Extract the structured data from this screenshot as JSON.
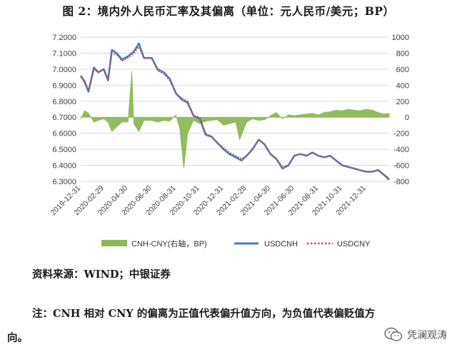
{
  "title": "图 2：境内外人民币汇率及其偏离（单位：元人民币/美元；BP）",
  "source": "资料来源：WIND；中银证券",
  "note": "注：CNH 相对 CNY 的偏离为正值代表偏升值方向，为负值代表偏贬值方",
  "note_tail": "向。",
  "watermark": "凭澜观涛",
  "colors": {
    "deviation": "#8DB955",
    "usdcnh": "#4A7EBB",
    "usdcny": "#C0504D"
  },
  "chart_data": {
    "type": "line",
    "left_axis": {
      "min": 6.3,
      "max": 7.2,
      "step": 0.1,
      "ticks": [
        "6.3000",
        "6.4000",
        "6.5000",
        "6.6000",
        "6.7000",
        "6.8000",
        "6.9000",
        "7.0000",
        "7.1000",
        "7.2000"
      ]
    },
    "right_axis": {
      "min": -800,
      "max": 1000,
      "step": 200,
      "ticks": [
        "-800",
        "-600",
        "-400",
        "-200",
        "0",
        "200",
        "400",
        "600",
        "800",
        "1000"
      ]
    },
    "x_ticks": [
      "2019-12-31",
      "2020-02-29",
      "2020-04-30",
      "2020-06-30",
      "2020-08-31",
      "2020-10-31",
      "2020-12-31",
      "2021-02-28",
      "2021-04-30",
      "2021-06-30",
      "2021-08-31",
      "2021-10-31",
      "2021-12-31"
    ],
    "x_range": [
      "2019-12-31",
      "2022-02-28"
    ],
    "usdcnh": [
      [
        "2019-12-31",
        6.96
      ],
      [
        "2020-01-10",
        6.92
      ],
      [
        "2020-01-20",
        6.86
      ],
      [
        "2020-02-03",
        7.01
      ],
      [
        "2020-02-14",
        6.98
      ],
      [
        "2020-02-28",
        7.0
      ],
      [
        "2020-03-10",
        6.93
      ],
      [
        "2020-03-20",
        7.12
      ],
      [
        "2020-04-01",
        7.1
      ],
      [
        "2020-04-15",
        7.06
      ],
      [
        "2020-04-30",
        7.08
      ],
      [
        "2020-05-15",
        7.11
      ],
      [
        "2020-05-28",
        7.16
      ],
      [
        "2020-06-10",
        7.07
      ],
      [
        "2020-06-30",
        7.07
      ],
      [
        "2020-07-15",
        7.0
      ],
      [
        "2020-07-31",
        6.98
      ],
      [
        "2020-08-15",
        6.94
      ],
      [
        "2020-08-31",
        6.85
      ],
      [
        "2020-09-15",
        6.81
      ],
      [
        "2020-09-30",
        6.79
      ],
      [
        "2020-10-15",
        6.71
      ],
      [
        "2020-10-31",
        6.69
      ],
      [
        "2020-11-15",
        6.59
      ],
      [
        "2020-11-30",
        6.58
      ],
      [
        "2020-12-15",
        6.54
      ],
      [
        "2020-12-31",
        6.5
      ],
      [
        "2021-01-15",
        6.47
      ],
      [
        "2021-01-31",
        6.45
      ],
      [
        "2021-02-15",
        6.43
      ],
      [
        "2021-02-28",
        6.46
      ],
      [
        "2021-03-15",
        6.5
      ],
      [
        "2021-03-31",
        6.56
      ],
      [
        "2021-04-15",
        6.53
      ],
      [
        "2021-04-30",
        6.47
      ],
      [
        "2021-05-15",
        6.44
      ],
      [
        "2021-05-31",
        6.38
      ],
      [
        "2021-06-15",
        6.4
      ],
      [
        "2021-06-30",
        6.46
      ],
      [
        "2021-07-15",
        6.47
      ],
      [
        "2021-07-31",
        6.46
      ],
      [
        "2021-08-15",
        6.48
      ],
      [
        "2021-08-31",
        6.46
      ],
      [
        "2021-09-15",
        6.45
      ],
      [
        "2021-09-30",
        6.46
      ],
      [
        "2021-10-15",
        6.43
      ],
      [
        "2021-10-31",
        6.4
      ],
      [
        "2021-11-15",
        6.39
      ],
      [
        "2021-11-30",
        6.38
      ],
      [
        "2021-12-15",
        6.37
      ],
      [
        "2021-12-31",
        6.36
      ],
      [
        "2022-01-15",
        6.36
      ],
      [
        "2022-01-31",
        6.37
      ],
      [
        "2022-02-15",
        6.34
      ],
      [
        "2022-02-28",
        6.31
      ]
    ],
    "usdcny": [
      [
        "2019-12-31",
        6.96
      ],
      [
        "2020-01-10",
        6.93
      ],
      [
        "2020-01-20",
        6.87
      ],
      [
        "2020-02-03",
        7.0
      ],
      [
        "2020-02-14",
        6.98
      ],
      [
        "2020-02-28",
        7.0
      ],
      [
        "2020-03-10",
        6.94
      ],
      [
        "2020-03-20",
        7.1
      ],
      [
        "2020-04-01",
        7.09
      ],
      [
        "2020-04-15",
        7.05
      ],
      [
        "2020-04-30",
        7.07
      ],
      [
        "2020-05-15",
        7.1
      ],
      [
        "2020-05-28",
        7.14
      ],
      [
        "2020-06-10",
        7.07
      ],
      [
        "2020-06-30",
        7.07
      ],
      [
        "2020-07-15",
        6.99
      ],
      [
        "2020-07-31",
        6.97
      ],
      [
        "2020-08-15",
        6.93
      ],
      [
        "2020-08-31",
        6.85
      ],
      [
        "2020-09-15",
        6.82
      ],
      [
        "2020-09-30",
        6.8
      ],
      [
        "2020-10-15",
        6.71
      ],
      [
        "2020-10-31",
        6.7
      ],
      [
        "2020-11-15",
        6.6
      ],
      [
        "2020-11-30",
        6.58
      ],
      [
        "2020-12-15",
        6.54
      ],
      [
        "2020-12-31",
        6.51
      ],
      [
        "2021-01-15",
        6.48
      ],
      [
        "2021-01-31",
        6.46
      ],
      [
        "2021-02-15",
        6.44
      ],
      [
        "2021-02-28",
        6.46
      ],
      [
        "2021-03-15",
        6.5
      ],
      [
        "2021-03-31",
        6.56
      ],
      [
        "2021-04-15",
        6.53
      ],
      [
        "2021-04-30",
        6.47
      ],
      [
        "2021-05-15",
        6.44
      ],
      [
        "2021-05-31",
        6.39
      ],
      [
        "2021-06-15",
        6.4
      ],
      [
        "2021-06-30",
        6.46
      ],
      [
        "2021-07-15",
        6.47
      ],
      [
        "2021-07-31",
        6.46
      ],
      [
        "2021-08-15",
        6.48
      ],
      [
        "2021-08-31",
        6.46
      ],
      [
        "2021-09-15",
        6.45
      ],
      [
        "2021-09-30",
        6.46
      ],
      [
        "2021-10-15",
        6.43
      ],
      [
        "2021-10-31",
        6.4
      ],
      [
        "2021-11-15",
        6.39
      ],
      [
        "2021-11-30",
        6.38
      ],
      [
        "2021-12-15",
        6.37
      ],
      [
        "2021-12-31",
        6.36
      ],
      [
        "2022-01-15",
        6.36
      ],
      [
        "2022-01-31",
        6.37
      ],
      [
        "2022-02-15",
        6.34
      ],
      [
        "2022-02-28",
        6.32
      ]
    ],
    "deviation": [
      [
        "2019-12-31",
        -20
      ],
      [
        "2020-01-10",
        80
      ],
      [
        "2020-01-20",
        50
      ],
      [
        "2020-02-03",
        -60
      ],
      [
        "2020-02-14",
        -40
      ],
      [
        "2020-02-28",
        -20
      ],
      [
        "2020-03-10",
        -60
      ],
      [
        "2020-03-20",
        -180
      ],
      [
        "2020-04-01",
        -120
      ],
      [
        "2020-04-15",
        -60
      ],
      [
        "2020-04-30",
        -60
      ],
      [
        "2020-05-10",
        580
      ],
      [
        "2020-05-15",
        -80
      ],
      [
        "2020-05-28",
        -180
      ],
      [
        "2020-06-10",
        -40
      ],
      [
        "2020-06-30",
        -40
      ],
      [
        "2020-07-15",
        -60
      ],
      [
        "2020-07-31",
        -40
      ],
      [
        "2020-08-15",
        -50
      ],
      [
        "2020-08-31",
        30
      ],
      [
        "2020-09-10",
        -150
      ],
      [
        "2020-09-20",
        -640
      ],
      [
        "2020-09-30",
        -200
      ],
      [
        "2020-10-15",
        -40
      ],
      [
        "2020-10-31",
        -80
      ],
      [
        "2020-11-15",
        -50
      ],
      [
        "2020-11-30",
        -40
      ],
      [
        "2020-12-15",
        -30
      ],
      [
        "2020-12-31",
        -100
      ],
      [
        "2021-01-15",
        -80
      ],
      [
        "2021-01-31",
        -60
      ],
      [
        "2021-02-10",
        -280
      ],
      [
        "2021-02-28",
        -60
      ],
      [
        "2021-03-15",
        -20
      ],
      [
        "2021-03-31",
        -40
      ],
      [
        "2021-04-15",
        -30
      ],
      [
        "2021-04-30",
        20
      ],
      [
        "2021-05-15",
        60
      ],
      [
        "2021-05-31",
        -20
      ],
      [
        "2021-06-15",
        30
      ],
      [
        "2021-06-30",
        20
      ],
      [
        "2021-07-15",
        30
      ],
      [
        "2021-07-31",
        40
      ],
      [
        "2021-08-15",
        50
      ],
      [
        "2021-08-31",
        30
      ],
      [
        "2021-09-15",
        60
      ],
      [
        "2021-09-30",
        70
      ],
      [
        "2021-10-15",
        90
      ],
      [
        "2021-10-31",
        80
      ],
      [
        "2021-11-15",
        100
      ],
      [
        "2021-11-30",
        90
      ],
      [
        "2021-12-15",
        80
      ],
      [
        "2021-12-31",
        100
      ],
      [
        "2022-01-15",
        90
      ],
      [
        "2022-01-31",
        60
      ],
      [
        "2022-02-15",
        40
      ],
      [
        "2022-02-28",
        50
      ]
    ],
    "legend": {
      "placement": "bottom",
      "items": [
        {
          "key": "deviation",
          "label": "CNH-CNY(右轴，BP)"
        },
        {
          "key": "usdcnh",
          "label": "USDCNH"
        },
        {
          "key": "usdcny",
          "label": "USDCNY"
        }
      ]
    }
  }
}
